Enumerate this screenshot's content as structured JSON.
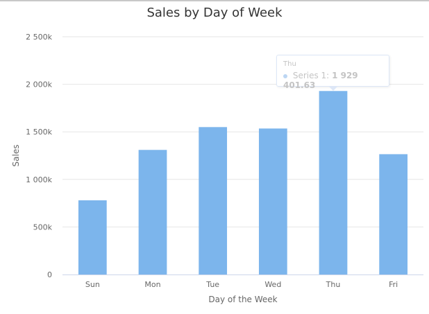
{
  "chart_data": {
    "type": "bar",
    "title": "Sales by Day of Week",
    "xlabel": "Day of the Week",
    "ylabel": "Sales",
    "categories": [
      "Sun",
      "Mon",
      "Tue",
      "Wed",
      "Thu",
      "Fri"
    ],
    "series": [
      {
        "name": "Series 1",
        "values": [
          780000,
          1310000,
          1550000,
          1535000,
          1929401.63,
          1265000
        ]
      }
    ],
    "ylim": [
      0,
      2500000
    ],
    "yticks": [
      0,
      500000,
      1000000,
      1500000,
      2000000,
      2500000
    ],
    "ytick_labels": [
      "0",
      "500k",
      "1 000k",
      "1 500k",
      "2 000k",
      "2 500k"
    ],
    "grid": true,
    "bar_color": "#7cb5ec",
    "tooltip": {
      "category": "Thu",
      "series_label": "Series 1:",
      "value_text": "1 929 401.63"
    }
  }
}
